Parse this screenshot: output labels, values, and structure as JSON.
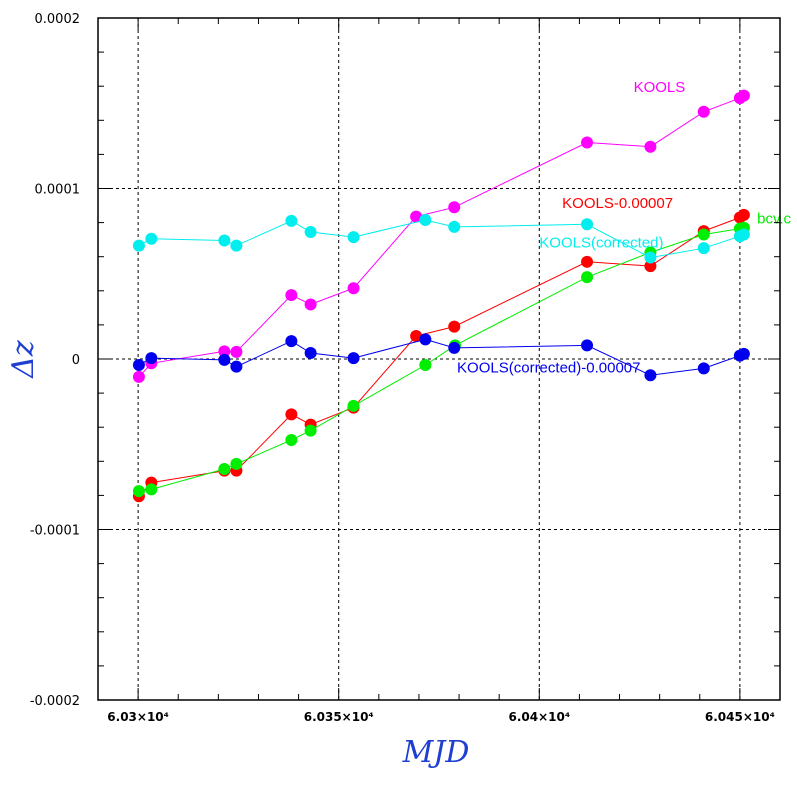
{
  "chart_data": {
    "type": "scatter",
    "xlabel": "MJD",
    "ylabel": "Δz",
    "xlim": [
      60290,
      60460
    ],
    "ylim": [
      -0.0002,
      0.0002
    ],
    "grid": true,
    "x_ticks": [
      60300,
      60350,
      60400,
      60450
    ],
    "x_tick_labels": [
      "6.03×10⁴",
      "6.035×10⁴",
      "6.04×10⁴",
      "6.045×10⁴"
    ],
    "y_ticks": [
      -0.0002,
      -0.0001,
      0,
      0.0001,
      0.0002
    ],
    "y_tick_labels": [
      "-0.0002",
      "-0.0001",
      "0",
      "0.0001",
      "0.0002"
    ],
    "series": [
      {
        "name": "KOOLS",
        "color": "#ff00ff",
        "x": [
          60300.2,
          60303.3,
          60321.5,
          60324.5,
          60338.2,
          60343.0,
          60353.7,
          60378.8,
          60369.3,
          60411.9,
          60427.7,
          60441.0,
          60450.0,
          60451.0
        ],
        "y": [
          -1.05e-05,
          -2.5e-06,
          4.5e-06,
          4.2e-06,
          3.75e-05,
          3.2e-05,
          4.15e-05,
          8.9e-05,
          8.35e-05,
          0.000127,
          0.0001245,
          0.000145,
          0.000153,
          0.0001545
        ]
      },
      {
        "name": "KOOLS-0.00007",
        "color": "#ff0000",
        "x": [
          60300.2,
          60303.3,
          60321.5,
          60324.5,
          60338.2,
          60343.0,
          60353.7,
          60369.3,
          60378.8,
          60411.9,
          60427.7,
          60441.0,
          60450.0,
          60451.0
        ],
        "y": [
          -8.05e-05,
          -7.25e-05,
          -6.55e-05,
          -6.55e-05,
          -3.25e-05,
          -3.85e-05,
          -2.85e-05,
          1.35e-05,
          1.9e-05,
          5.7e-05,
          5.45e-05,
          7.5e-05,
          8.3e-05,
          8.45e-05
        ]
      },
      {
        "name": "bcv.c",
        "color": "#00ee00",
        "x": [
          60300.2,
          60303.3,
          60321.5,
          60324.5,
          60338.2,
          60343.0,
          60353.7,
          60371.6,
          60379.0,
          60411.9,
          60427.7,
          60441.0,
          60450.0,
          60451.0
        ],
        "y": [
          -7.75e-05,
          -7.65e-05,
          -6.45e-05,
          -6.15e-05,
          -4.75e-05,
          -4.2e-05,
          -2.75e-05,
          -3.5e-06,
          8e-06,
          4.8e-05,
          6.25e-05,
          7.3e-05,
          7.65e-05,
          7.7e-05
        ]
      },
      {
        "name": "KOOLS(corrected)",
        "color": "#00eeee",
        "x": [
          60300.2,
          60303.3,
          60321.5,
          60324.5,
          60338.2,
          60343.0,
          60353.7,
          60371.6,
          60378.8,
          60411.9,
          60427.7,
          60441.0,
          60450.0,
          60451.0
        ],
        "y": [
          6.65e-05,
          7.05e-05,
          6.95e-05,
          6.65e-05,
          8.1e-05,
          7.45e-05,
          7.15e-05,
          8.15e-05,
          7.75e-05,
          7.9e-05,
          5.95e-05,
          6.5e-05,
          7.2e-05,
          7.3e-05
        ]
      },
      {
        "name": "KOOLS(corrected)-0.00007",
        "color": "#0000ee",
        "x": [
          60300.2,
          60303.3,
          60321.5,
          60324.5,
          60338.2,
          60343.0,
          60353.7,
          60371.6,
          60378.8,
          60411.9,
          60427.7,
          60441.0,
          60450.0,
          60451.0
        ],
        "y": [
          -3.5e-06,
          5e-07,
          -5e-07,
          -4.5e-06,
          1.05e-05,
          3.5e-06,
          5e-07,
          1.15e-05,
          6.5e-06,
          8e-06,
          -9.5e-06,
          -5.5e-06,
          2e-06,
          3e-06
        ]
      }
    ],
    "annotations": [
      {
        "text": "KOOLS",
        "color": "#ff00ff",
        "x": 60423.5,
        "y": 0.0001567
      },
      {
        "text": "KOOLS-0.00007",
        "color": "#ff0000",
        "x": 60405.7,
        "y": 8.85e-05
      },
      {
        "text": "bcv.c",
        "color": "#00ee00",
        "x": 60454.3,
        "y": 7.95e-05
      },
      {
        "text": "KOOLS(corrected)",
        "color": "#00eeee",
        "x": 60400.0,
        "y": 6.55e-05
      },
      {
        "text": "KOOLS(corrected)-0.00007",
        "color": "#0000ee",
        "x": 60379.5,
        "y": -7.8e-06
      }
    ]
  }
}
